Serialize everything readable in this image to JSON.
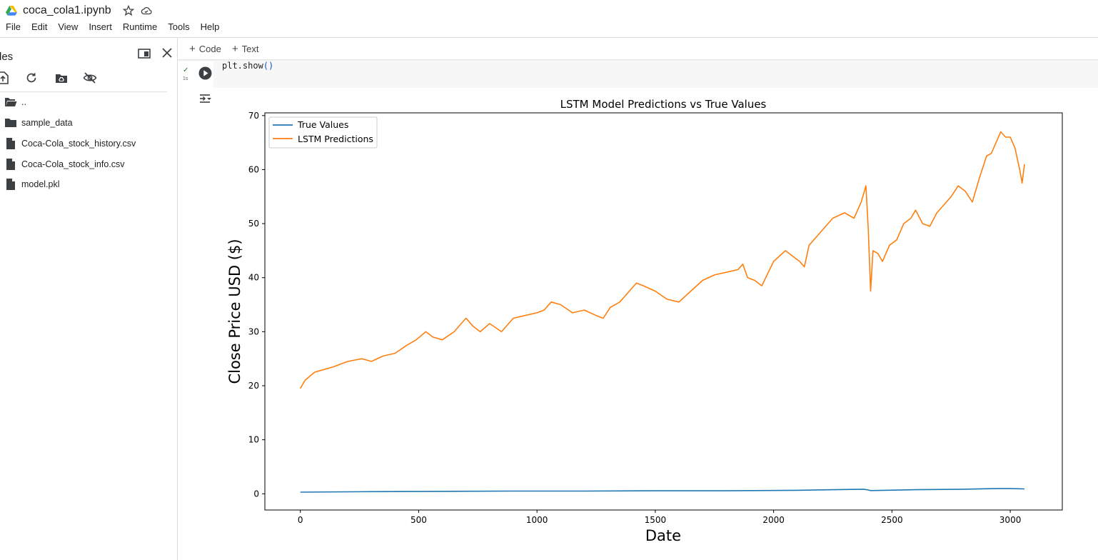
{
  "header": {
    "doc_title": "coca_cola1.ipynb",
    "menu": [
      "File",
      "Edit",
      "View",
      "Insert",
      "Runtime",
      "Tools",
      "Help"
    ],
    "icons": [
      "google-drive-icon",
      "star-icon",
      "cloud-saved-icon"
    ]
  },
  "sidebar": {
    "title": "les",
    "tools": [
      "upload-icon",
      "refresh-icon",
      "mount-drive-icon",
      "hide-files-icon"
    ],
    "files": [
      {
        "name": "..",
        "kind": "folder-open"
      },
      {
        "name": "sample_data",
        "kind": "folder"
      },
      {
        "name": "Coca-Cola_stock_history.csv",
        "kind": "file"
      },
      {
        "name": "Coca-Cola_stock_info.csv",
        "kind": "file"
      },
      {
        "name": "model.pkl",
        "kind": "file"
      }
    ]
  },
  "toolbar": {
    "add_code": "Code",
    "add_text": "Text"
  },
  "cell": {
    "code_fn": "plt.show",
    "code_parens": "()",
    "status_check": "✓",
    "exec_time": "1s"
  },
  "colors": {
    "true_values": "#1f77b4",
    "predictions": "#ff7f0e",
    "accent": "#0b57d0"
  },
  "chart_data": {
    "type": "line",
    "title": "LSTM Model Predictions vs True Values",
    "xlabel": "Date",
    "ylabel": "Close Price USD ($)",
    "xlim": [
      -150,
      3220
    ],
    "ylim": [
      -3,
      70.5
    ],
    "xticks": [
      0,
      500,
      1000,
      1500,
      2000,
      2500,
      3000
    ],
    "yticks": [
      0,
      10,
      20,
      30,
      40,
      50,
      60,
      70
    ],
    "legend_position": "upper-left",
    "series": [
      {
        "name": "True Values",
        "x": [
          0,
          300,
          600,
          900,
          1200,
          1500,
          1800,
          2100,
          2380,
          2400,
          2410,
          2600,
          2800,
          2950,
          3000,
          3060
        ],
        "y": [
          0.3,
          0.4,
          0.45,
          0.5,
          0.5,
          0.55,
          0.55,
          0.65,
          0.85,
          0.7,
          0.6,
          0.75,
          0.85,
          0.98,
          0.98,
          0.9
        ]
      },
      {
        "name": "LSTM Predictions",
        "x": [
          0,
          20,
          60,
          100,
          140,
          200,
          260,
          300,
          350,
          400,
          450,
          490,
          530,
          560,
          600,
          650,
          680,
          700,
          730,
          760,
          800,
          850,
          900,
          950,
          1000,
          1030,
          1060,
          1100,
          1150,
          1200,
          1250,
          1280,
          1310,
          1350,
          1400,
          1420,
          1450,
          1500,
          1550,
          1600,
          1650,
          1700,
          1750,
          1800,
          1850,
          1870,
          1890,
          1920,
          1950,
          2000,
          2050,
          2080,
          2110,
          2130,
          2150,
          2180,
          2210,
          2250,
          2300,
          2340,
          2370,
          2390,
          2400,
          2410,
          2420,
          2440,
          2460,
          2490,
          2520,
          2550,
          2580,
          2600,
          2630,
          2660,
          2690,
          2720,
          2750,
          2780,
          2810,
          2840,
          2870,
          2900,
          2920,
          2940,
          2960,
          2980,
          3000,
          3020,
          3040,
          3050,
          3060
        ],
        "y": [
          19.5,
          21.0,
          22.5,
          23.0,
          23.5,
          24.5,
          25.0,
          24.5,
          25.5,
          26.0,
          27.5,
          28.5,
          30.0,
          29.0,
          28.5,
          30.0,
          31.5,
          32.5,
          31.0,
          30.0,
          31.5,
          30.0,
          32.5,
          33.0,
          33.5,
          34.0,
          35.5,
          35.0,
          33.5,
          34.0,
          33.0,
          32.5,
          34.5,
          35.5,
          38.0,
          39.0,
          38.5,
          37.5,
          36.0,
          35.5,
          37.5,
          39.5,
          40.5,
          41.0,
          41.5,
          42.5,
          40.0,
          39.5,
          38.5,
          43.0,
          45.0,
          44.0,
          43.0,
          42.0,
          46.0,
          47.5,
          49.0,
          51.0,
          52.0,
          51.0,
          54.0,
          57.0,
          49.0,
          37.5,
          45.0,
          44.5,
          43.0,
          46.0,
          47.0,
          50.0,
          51.0,
          52.5,
          50.0,
          49.5,
          52.0,
          53.5,
          55.0,
          57.0,
          56.0,
          54.0,
          58.5,
          62.5,
          63.0,
          65.0,
          67.0,
          66.0,
          66.0,
          64.0,
          60.0,
          57.5,
          61.0
        ]
      }
    ]
  }
}
